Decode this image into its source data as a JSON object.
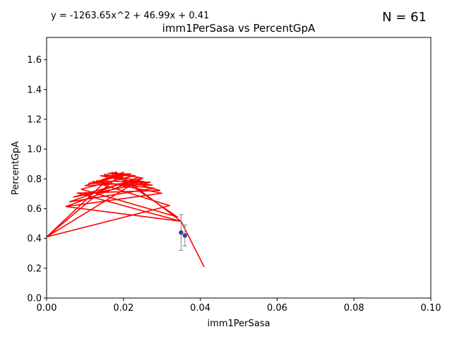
{
  "chart_data": {
    "type": "line",
    "title": "imm1PerSasa vs PercentGpA",
    "xlabel": "imm1PerSasa",
    "ylabel": "PercentGpA",
    "equation": "y = -1263.65x^2 + 46.99x + 0.41",
    "n_label": "N = 61",
    "xlim": [
      0,
      0.1
    ],
    "ylim": [
      0,
      1.75
    ],
    "x_ticks": [
      0,
      0.02,
      0.04,
      0.06,
      0.08,
      0.1
    ],
    "x_tick_labels": [
      "0.00",
      "0.02",
      "0.04",
      "0.06",
      "0.08",
      "0.10"
    ],
    "y_ticks": [
      0,
      0.2,
      0.4,
      0.6,
      0.8,
      1.0,
      1.2,
      1.4,
      1.6
    ],
    "y_tick_labels": [
      "0.0",
      "0.2",
      "0.4",
      "0.6",
      "0.8",
      "1.0",
      "1.2",
      "1.4",
      "1.6"
    ],
    "grid": false,
    "colors": {
      "fit_line": "#ff0000",
      "points": "#3f3f9f",
      "error_bars": "#808080"
    },
    "fit_curve": {
      "x": [
        0.041,
        0.035,
        0.005,
        0.03,
        0.013,
        0.027,
        0.007,
        0.025,
        0.0,
        0.018,
        0.035,
        0.008,
        0.0295,
        0.015,
        0.026,
        0.01,
        0.02,
        0.0,
        0.032,
        0.012,
        0.028,
        0.006,
        0.024,
        0.016,
        0.022,
        0.011,
        0.0275,
        0.014,
        0.023,
        0.009,
        0.034,
        0.017,
        0.025,
        0.005
      ],
      "y": [
        0.209,
        0.515,
        0.614,
        0.704,
        0.787,
        0.778,
        0.678,
        0.806,
        0.41,
        0.847,
        0.515,
        0.705,
        0.722,
        0.831,
        0.778,
        0.754,
        0.844,
        0.41,
        0.621,
        0.782,
        0.737,
        0.646,
        0.811,
        0.838,
        0.833,
        0.77,
        0.758,
        0.821,
        0.823,
        0.731,
        0.545,
        0.843,
        0.805,
        0.614
      ]
    },
    "points": [
      {
        "x": 0.035,
        "y": 0.44,
        "err": 0.12
      },
      {
        "x": 0.036,
        "y": 0.42,
        "err": 0.07
      }
    ]
  }
}
